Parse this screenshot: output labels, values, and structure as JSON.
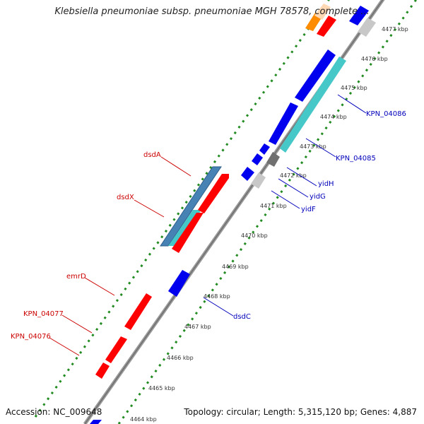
{
  "title": "Klebsiella pneumoniae subsp. pneumoniae MGH 78578, complete ...",
  "accession": "Accession: NC_009648",
  "summary": "Topology: circular; Length: 5,315,120 bp; Genes: 4,887",
  "scale_labels": [
    "4464 kbp",
    "4465 kbp",
    "4466 kbp",
    "4467 kbp",
    "4468 kbp",
    "4469 kbp",
    "4470 kbp",
    "4471 kbp",
    "4472 kbp",
    "4473 kbp",
    "4474 kbp",
    "4475 kbp",
    "4476 kbp",
    "4477 kbp"
  ],
  "colors": {
    "forward_gene": "#ff0000",
    "reverse_gene": "#0000ee",
    "forward_label": "#cc0000",
    "reverse_label": "#0000bb",
    "orange_feature": "#ff8c00",
    "peach_feature": "#ffd9b3",
    "teal_feature": "#46c8c8",
    "steelblue_feature": "#4682b4",
    "gray_feature": "#c8c8c8",
    "darkgray_feature": "#707070",
    "backbone": "#8c8c8c",
    "dotted_track": "#228b22"
  },
  "gene_labels": [
    {
      "name": "dsdA",
      "strand": "forward"
    },
    {
      "name": "dsdX",
      "strand": "forward"
    },
    {
      "name": "emrD",
      "strand": "forward"
    },
    {
      "name": "KPN_04077",
      "strand": "forward"
    },
    {
      "name": "KPN_04076",
      "strand": "forward"
    },
    {
      "name": "KPN_04086",
      "strand": "reverse"
    },
    {
      "name": "KPN_04085",
      "strand": "reverse"
    },
    {
      "name": "yidH",
      "strand": "reverse"
    },
    {
      "name": "yidG",
      "strand": "reverse"
    },
    {
      "name": "yidF",
      "strand": "reverse"
    },
    {
      "name": "dsdC",
      "strand": "reverse"
    }
  ]
}
